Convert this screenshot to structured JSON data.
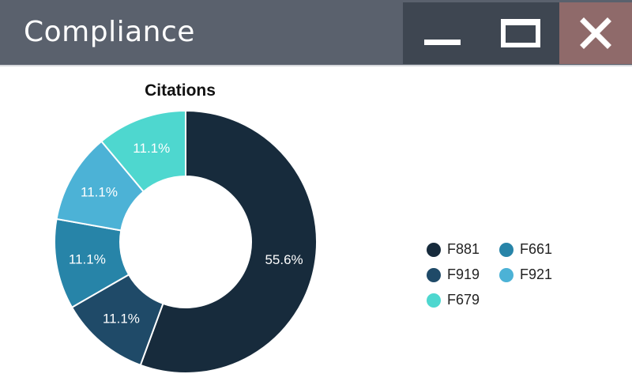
{
  "window": {
    "title": "Compliance",
    "controls": {
      "minimize": "minimize-icon",
      "maximize": "maximize-icon",
      "close": "close-icon"
    }
  },
  "colors": {
    "titlebar": "#5a616d",
    "control_bg": "#3e4651",
    "close_bg": "#8f6a6a"
  },
  "chart_data": {
    "type": "pie",
    "title": "Citations",
    "donut": true,
    "categories": [
      "F881",
      "F919",
      "F661",
      "F921",
      "F679"
    ],
    "values": [
      55.6,
      11.1,
      11.1,
      11.1,
      11.1
    ],
    "labels": [
      "55.6%",
      "11.1%",
      "11.1%",
      "11.1%",
      "11.1%"
    ],
    "colors": [
      "#172b3c",
      "#1f4a68",
      "#2784a8",
      "#4cb2d6",
      "#4ed7cf"
    ],
    "legend_position": "right"
  },
  "legend": {
    "items": [
      {
        "label": "F881",
        "color": "#172b3c"
      },
      {
        "label": "F661",
        "color": "#2784a8"
      },
      {
        "label": "F919",
        "color": "#1f4a68"
      },
      {
        "label": "F921",
        "color": "#4cb2d6"
      },
      {
        "label": "F679",
        "color": "#4ed7cf"
      }
    ]
  }
}
